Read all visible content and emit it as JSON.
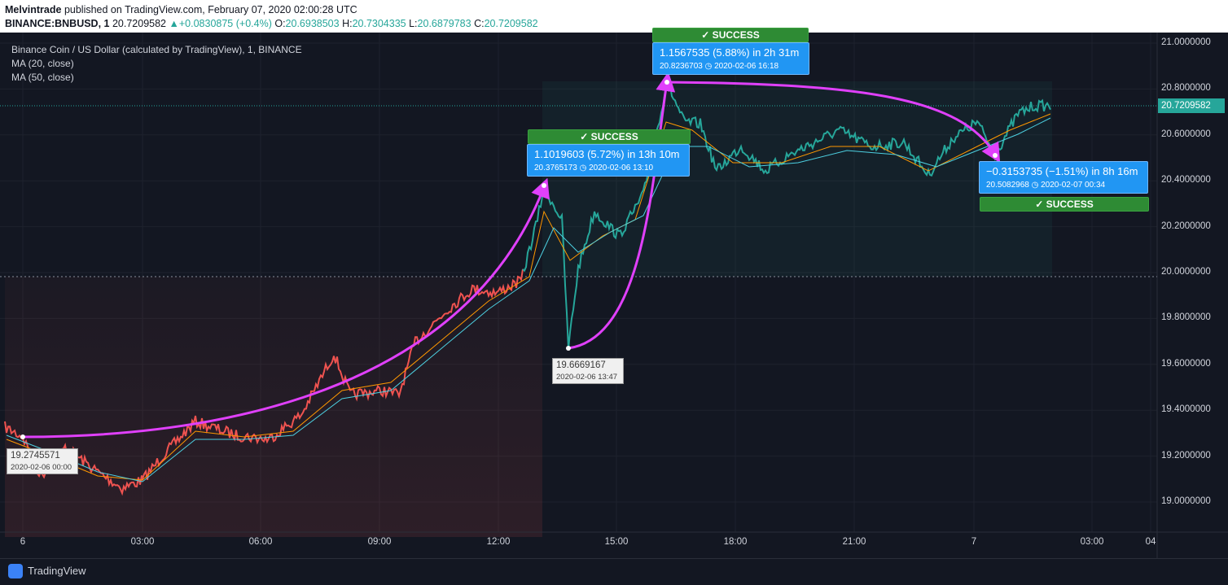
{
  "header": {
    "author": "Melvintrade",
    "published_text": " published on TradingView.com, February 07, 2020 02:00:28 UTC",
    "symbol": "BINANCE:BNBUSD, 1",
    "price": "20.7209582",
    "change": "+0.0830875 (+0.4%)",
    "open_label": "O:",
    "open": "20.6938503",
    "high_label": "H:",
    "high": "20.7304335",
    "low_label": "L:",
    "low": "20.6879783",
    "close_label": "C:",
    "close": "20.7209582"
  },
  "legend": {
    "title": "Binance Coin / US Dollar (calculated by TradingView), 1, BINANCE",
    "ma20": "MA (20, close)",
    "ma50": "MA (50, close)"
  },
  "price_axis": [
    "21.0000000",
    "20.8000000",
    "20.6000000",
    "20.4000000",
    "20.2000000",
    "20.0000000",
    "19.8000000",
    "19.6000000",
    "19.4000000",
    "19.2000000",
    "19.0000000"
  ],
  "current_price_label": "20.7209582",
  "time_axis": [
    "6",
    "03:00",
    "06:00",
    "09:00",
    "12:00",
    "15:00",
    "18:00",
    "21:00",
    "7",
    "03:00",
    "04"
  ],
  "annotations": {
    "start": {
      "value": "19.2745571",
      "time": "2020-02-06 00:00"
    },
    "low": {
      "value": "19.6669167",
      "time": "2020-02-06 13:47"
    },
    "box1": {
      "line1": "1.1019603 (5.72%) in 13h 10m",
      "line2": "20.3765173 ◷ 2020-02-06  13:10",
      "status": "✓ SUCCESS"
    },
    "box2": {
      "line1": "1.1567535 (5.88%) in 2h 31m",
      "line2": "20.8236703 ◷ 2020-02-06  16:18",
      "status": "✓ SUCCESS"
    },
    "box3": {
      "line1": "−0.3153735 (−1.51%) in 8h 16m",
      "line2": "20.5082968 ◷ 2020-02-07  00:34",
      "status": "✓ SUCCESS"
    }
  },
  "footer": {
    "brand": "TradingView"
  },
  "colors": {
    "background": "#131722",
    "up": "#26a69a",
    "down": "#ef5350",
    "arrow": "#e040fb",
    "box": "#2196f3",
    "success": "#2e8b34"
  }
}
